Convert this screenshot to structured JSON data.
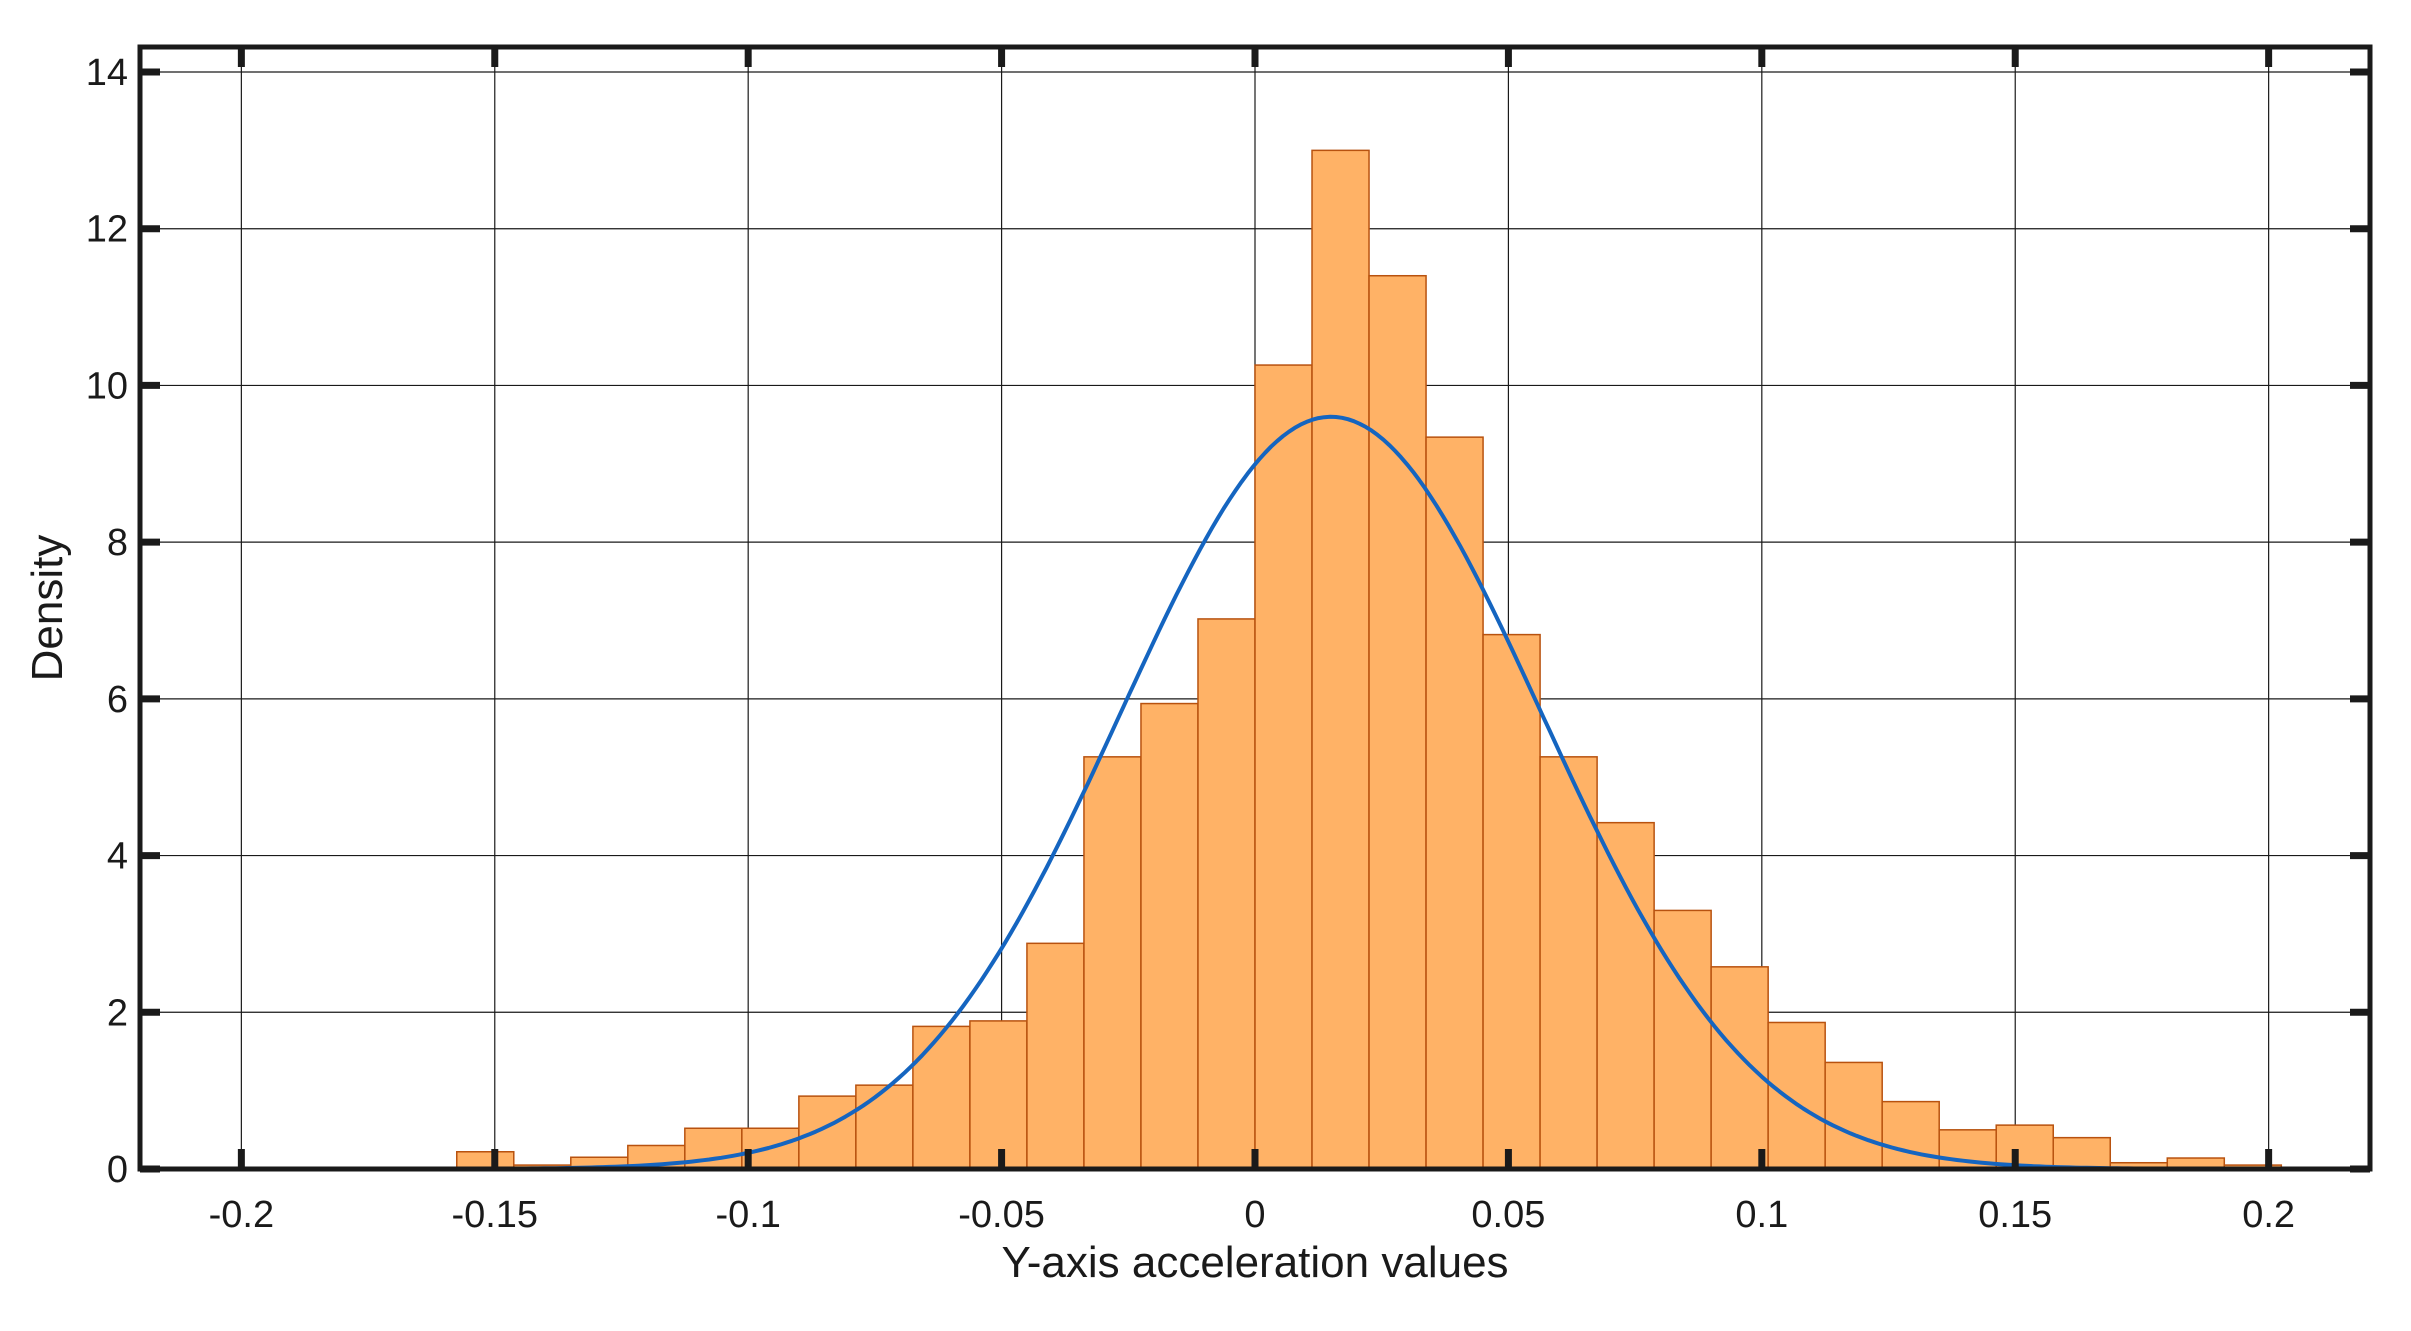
{
  "chart_data": {
    "type": "bar",
    "subtype": "histogram-with-normal-fit",
    "title": "",
    "xlabel": "Y-axis acceleration values",
    "ylabel": "Density",
    "xlim": [
      -0.22,
      0.22
    ],
    "ylim": [
      0,
      14
    ],
    "xticks": [
      -0.2,
      -0.15,
      -0.1,
      -0.05,
      0,
      0.05,
      0.1,
      0.15,
      0.2
    ],
    "xtick_labels": [
      "-0.2",
      "-0.15",
      "-0.1",
      "-0.05",
      "0",
      "0.05",
      "0.1",
      "0.15",
      "0.2"
    ],
    "yticks": [
      0,
      2,
      4,
      6,
      8,
      10,
      12,
      14
    ],
    "ytick_labels": [
      "0",
      "2",
      "4",
      "6",
      "8",
      "10",
      "12",
      "14"
    ],
    "grid": true,
    "bins": {
      "start": -0.1575,
      "width": 0.01125,
      "values": [
        0.22,
        0.05,
        0.15,
        0.3,
        0.52,
        0.52,
        0.93,
        1.07,
        1.82,
        1.89,
        2.88,
        5.26,
        5.94,
        7.02,
        10.26,
        13.0,
        11.4,
        9.34,
        6.82,
        5.26,
        4.42,
        3.3,
        2.58,
        1.87,
        1.36,
        0.86,
        0.5,
        0.56,
        0.4,
        0.08,
        0.14,
        0.05
      ]
    },
    "fit": {
      "distribution": "normal",
      "mean": 0.015,
      "sd": 0.0415,
      "x_range": [
        -0.145,
        0.205
      ],
      "peak_density": 9.6
    },
    "colors": {
      "bar_fill": "#ffb266",
      "bar_edge": "#b8520f",
      "fit_line": "#1565c0",
      "grid": "#1a1a1a",
      "axes": "#1a1a1a"
    }
  }
}
